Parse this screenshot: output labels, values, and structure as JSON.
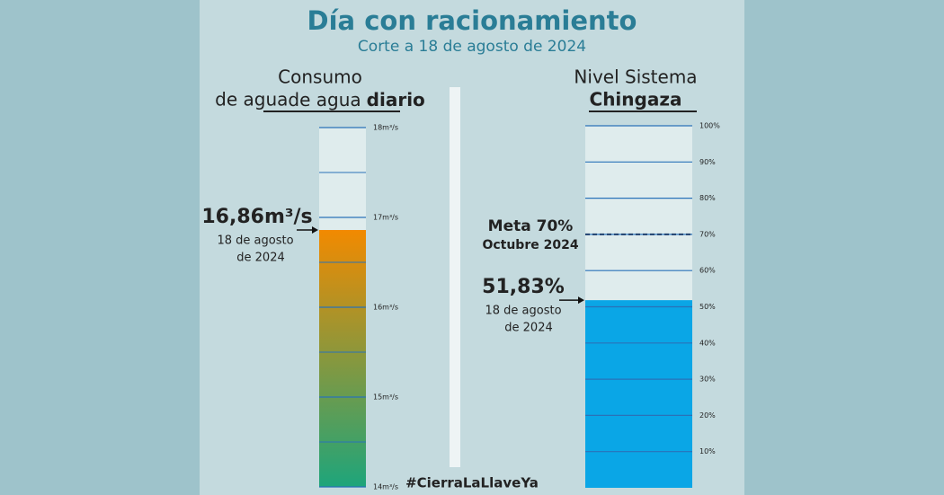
{
  "title": "Día con racionamiento",
  "subtitle": "Corte a 18 de agosto de 2024",
  "hashtag": "#CierraLaLlaveYa",
  "chart_data": [
    {
      "type": "gauge",
      "title": {
        "lines": [
          "Consumo",
          "de agua"
        ],
        "emphasis": "diario"
      },
      "ylim": [
        14,
        18
      ],
      "yticks": [
        {
          "value": 14,
          "label": "14m³/s"
        },
        {
          "value": 15,
          "label": "15m³/s"
        },
        {
          "value": 16,
          "label": "16m³/s"
        },
        {
          "value": 17,
          "label": "17m³/s"
        },
        {
          "value": 18,
          "label": "18m³/s"
        }
      ],
      "minor_yticks": [
        14.5,
        15.5,
        16.5,
        17.5
      ],
      "value": 16.86,
      "value_label": "16,86m³/s",
      "annotation": [
        "18 de agosto",
        "de 2024"
      ],
      "colors": [
        "#f28a00",
        "#1ea57b"
      ]
    },
    {
      "type": "gauge",
      "title": {
        "lines": [
          "Nivel Sistema"
        ],
        "emphasis": "Chingaza"
      },
      "ylim": [
        0,
        100
      ],
      "yticks": [
        {
          "value": 10,
          "label": "10%"
        },
        {
          "value": 20,
          "label": "20%"
        },
        {
          "value": 30,
          "label": "30%"
        },
        {
          "value": 40,
          "label": "40%"
        },
        {
          "value": 50,
          "label": "50%"
        },
        {
          "value": 60,
          "label": "60%"
        },
        {
          "value": 70,
          "label": "70%"
        },
        {
          "value": 80,
          "label": "80%"
        },
        {
          "value": 90,
          "label": "90%"
        },
        {
          "value": 100,
          "label": "100%"
        }
      ],
      "value": 51.83,
      "value_label": "51,83%",
      "annotation": [
        "18 de agosto",
        "de 2024"
      ],
      "target": 70,
      "target_label": [
        "Meta 70%",
        "Octubre 2024"
      ],
      "colors": [
        "#0aa6e6"
      ]
    }
  ]
}
